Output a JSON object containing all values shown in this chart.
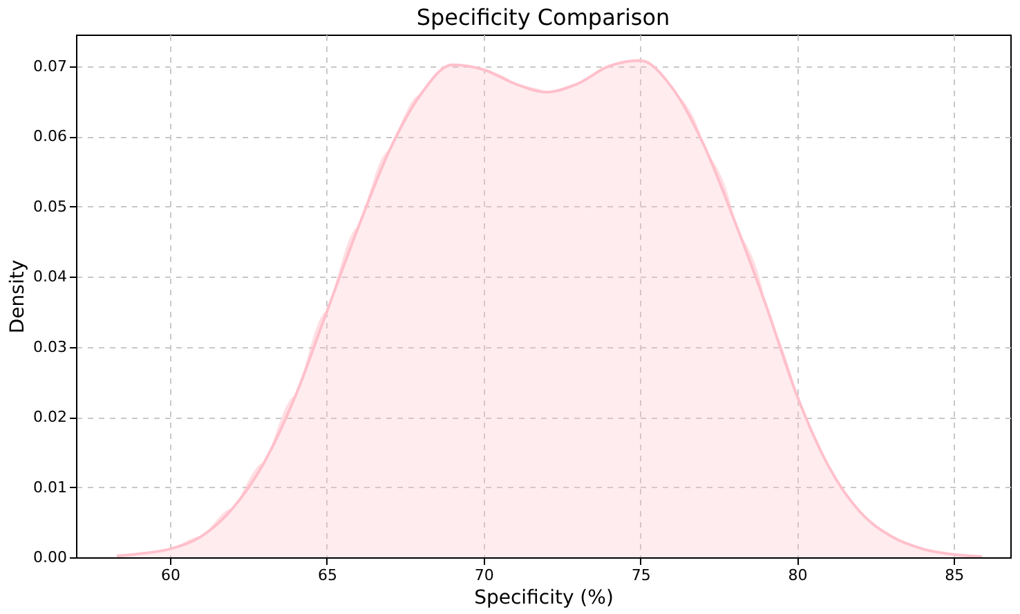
{
  "chart_data": {
    "type": "area",
    "title": "Specificity Comparison",
    "xlabel": "Specificity (%)",
    "ylabel": "Density",
    "x": [
      58.3,
      59,
      60,
      61,
      62,
      63,
      64,
      65,
      66,
      67,
      68,
      69,
      70,
      71,
      72,
      73,
      74,
      75,
      76,
      77,
      78,
      79,
      80,
      81,
      82,
      83,
      84,
      85,
      85.9
    ],
    "series": [
      {
        "color": "#ffc0cb",
        "values": [
          0.0002,
          0.0005,
          0.0012,
          0.003,
          0.007,
          0.0135,
          0.023,
          0.035,
          0.047,
          0.058,
          0.066,
          0.0702,
          0.0695,
          0.0675,
          0.0663,
          0.0675,
          0.07,
          0.0708,
          0.067,
          0.059,
          0.048,
          0.036,
          0.023,
          0.013,
          0.0065,
          0.003,
          0.0012,
          0.0004,
          0.0001
        ]
      }
    ],
    "xlim": [
      57,
      86.8
    ],
    "xticks": [
      60,
      65,
      70,
      75,
      80,
      85
    ],
    "ylim": [
      0,
      0.0745
    ],
    "yticks": [
      {
        "value": 0,
        "label": "0.00"
      },
      {
        "value": 0.01,
        "label": "0.01"
      },
      {
        "value": 0.02,
        "label": "0.02"
      },
      {
        "value": 0.03,
        "label": "0.03"
      },
      {
        "value": 0.04,
        "label": "0.04"
      },
      {
        "value": 0.05,
        "label": "0.05"
      },
      {
        "value": 0.06,
        "label": "0.06"
      },
      {
        "value": 0.07,
        "label": "0.07"
      }
    ],
    "grid": true,
    "line_style": "solid"
  }
}
